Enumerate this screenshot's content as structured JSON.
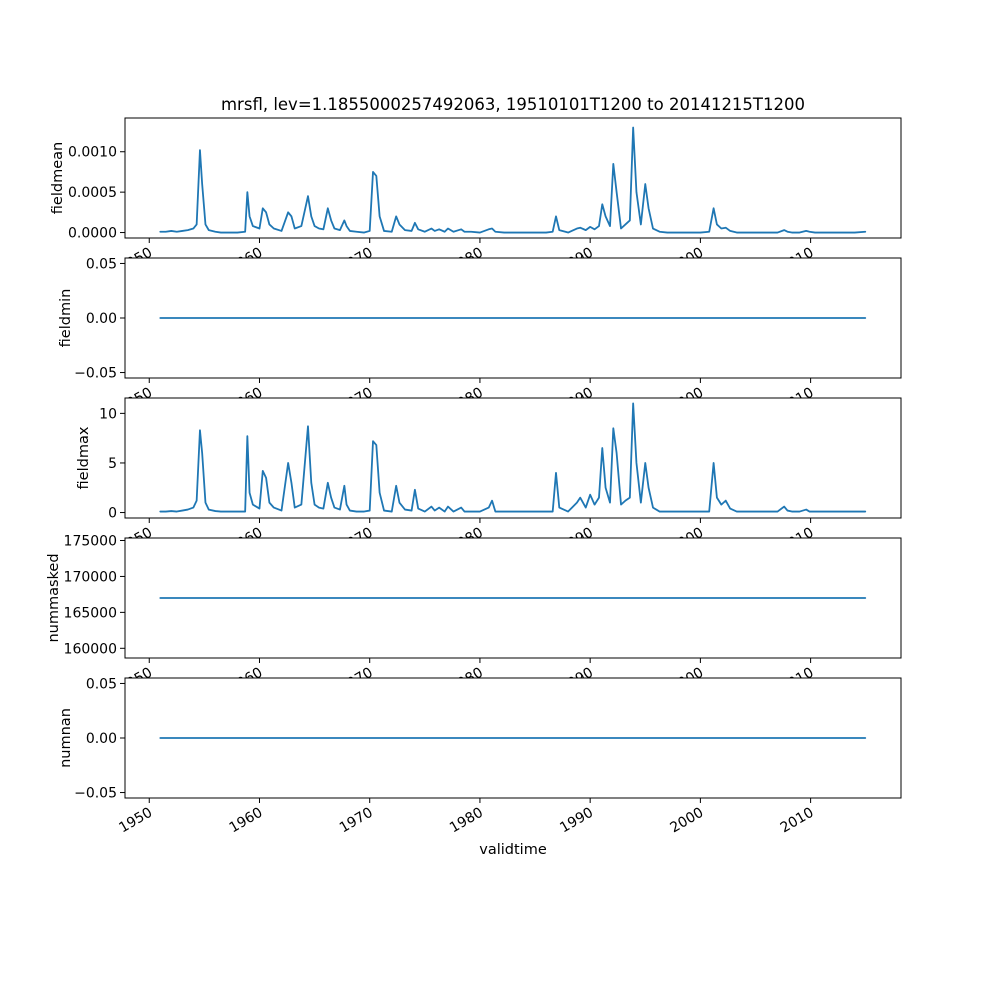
{
  "chart_data": {
    "type": "line",
    "title": "mrsfl, lev=1.1855000257492063, 19510101T1200 to 20141215T1200",
    "xlabel": "validtime",
    "line_color": "#1f77b4",
    "background_color": "#ffffff",
    "xlim": [
      1947.8,
      2018.2
    ],
    "xticks": {
      "values": [
        1950,
        1960,
        1970,
        1980,
        1990,
        2000,
        2010
      ],
      "labels": [
        "1950",
        "1960",
        "1970",
        "1980",
        "1990",
        "2000",
        "2010"
      ]
    },
    "shared_x": [
      1951.0,
      1951.5,
      1952,
      1952.5,
      1953,
      1953.5,
      1954,
      1954.3,
      1954.6,
      1954.8,
      1955.1,
      1955.4,
      1956,
      1956.5,
      1957,
      1958,
      1958.7,
      1958.9,
      1959.1,
      1959.4,
      1960,
      1960.3,
      1960.6,
      1960.9,
      1961.3,
      1962,
      1962.6,
      1962.9,
      1963.2,
      1963.8,
      1964.4,
      1964.7,
      1965.0,
      1965.4,
      1965.8,
      1966.2,
      1966.5,
      1966.8,
      1967.3,
      1967.7,
      1967.9,
      1968.2,
      1968.8,
      1969.5,
      1970.0,
      1970.3,
      1970.6,
      1970.9,
      1971.3,
      1972.0,
      1972.4,
      1972.7,
      1973.2,
      1973.8,
      1974.1,
      1974.4,
      1975.0,
      1975.6,
      1975.9,
      1976.3,
      1976.8,
      1977.1,
      1977.6,
      1978.3,
      1978.6,
      1979.2,
      1980.0,
      1980.8,
      1981.1,
      1981.4,
      1982.2,
      1983,
      1984,
      1985,
      1986,
      1986.6,
      1986.9,
      1987.2,
      1988,
      1988.8,
      1989.1,
      1989.6,
      1990.0,
      1990.4,
      1990.8,
      1991.1,
      1991.4,
      1991.8,
      1992.1,
      1992.4,
      1992.8,
      1993.2,
      1993.6,
      1993.9,
      1994.2,
      1994.6,
      1995.0,
      1995.3,
      1995.7,
      1996.3,
      1997,
      1998,
      1999,
      2000,
      2000.8,
      2001.2,
      2001.5,
      2001.9,
      2002.3,
      2002.7,
      2003.3,
      2004,
      2005,
      2006,
      2007,
      2007.6,
      2007.9,
      2008.3,
      2009,
      2009.6,
      2009.9,
      2010.4,
      2011,
      2012,
      2013,
      2014,
      2014.96
    ],
    "subplots": [
      {
        "name": "fieldmean",
        "ylabel": "fieldmean",
        "ylim": [
          -6.75e-05,
          0.0014175
        ],
        "yticks": {
          "values": [
            0.0,
            0.0005,
            0.001
          ],
          "labels": [
            "0.0000",
            "0.0005",
            "0.0010"
          ]
        },
        "x": "shared",
        "y": [
          1e-05,
          1e-05,
          2e-05,
          1e-05,
          2e-05,
          3e-05,
          5e-05,
          0.0001,
          0.00102,
          0.0006,
          0.0001,
          3e-05,
          1e-05,
          0,
          0,
          0,
          1e-05,
          0.0005,
          0.0002,
          8e-05,
          5e-05,
          0.0003,
          0.00025,
          0.0001,
          5e-05,
          2e-05,
          0.00025,
          0.0002,
          5e-05,
          8e-05,
          0.00045,
          0.0002,
          8e-05,
          5e-05,
          4e-05,
          0.0003,
          0.00015,
          5e-05,
          3e-05,
          0.00015,
          8e-05,
          2e-05,
          1e-05,
          0,
          2e-05,
          0.00075,
          0.0007,
          0.0002,
          2e-05,
          1e-05,
          0.0002,
          0.0001,
          3e-05,
          2e-05,
          0.00012,
          4e-05,
          1e-05,
          5e-05,
          2e-05,
          4e-05,
          1e-05,
          5e-05,
          1e-05,
          4e-05,
          1e-05,
          1e-05,
          0,
          4e-05,
          5e-05,
          1e-05,
          0,
          0,
          0,
          0,
          0,
          1e-05,
          0.0002,
          3e-05,
          0,
          5e-05,
          6e-05,
          3e-05,
          7e-05,
          4e-05,
          8e-05,
          0.00035,
          0.0002,
          8e-05,
          0.00085,
          0.0005,
          5e-05,
          0.0001,
          0.00015,
          0.0013,
          0.0005,
          0.0001,
          0.0006,
          0.0003,
          5e-05,
          1e-05,
          0,
          0,
          0,
          0,
          1e-05,
          0.0003,
          0.0001,
          5e-05,
          6e-05,
          2e-05,
          0,
          0,
          0,
          0,
          0,
          3e-05,
          1e-05,
          0,
          0,
          2e-05,
          1e-05,
          0,
          0,
          0,
          0,
          0,
          1e-05
        ]
      },
      {
        "name": "fieldmin",
        "ylabel": "fieldmin",
        "ylim": [
          -0.055,
          0.055
        ],
        "yticks": {
          "values": [
            -0.05,
            0.0,
            0.05
          ],
          "labels": [
            "−0.05",
            "0.00",
            "0.05"
          ]
        },
        "x": [
          1951.0,
          2014.96
        ],
        "y": [
          0,
          0
        ]
      },
      {
        "name": "fieldmax",
        "ylabel": "fieldmax",
        "ylim": [
          -0.55,
          11.55
        ],
        "yticks": {
          "values": [
            0,
            5,
            10
          ],
          "labels": [
            "0",
            "5",
            "10"
          ]
        },
        "x": "shared",
        "y": [
          0.1,
          0.1,
          0.15,
          0.1,
          0.2,
          0.3,
          0.5,
          1.2,
          8.3,
          6.0,
          1.0,
          0.3,
          0.15,
          0.1,
          0.1,
          0.1,
          0.1,
          7.7,
          2.0,
          0.8,
          0.4,
          4.2,
          3.5,
          1.0,
          0.5,
          0.2,
          5.0,
          3.0,
          0.5,
          0.8,
          8.7,
          3.0,
          0.8,
          0.5,
          0.4,
          3.0,
          1.5,
          0.5,
          0.3,
          2.7,
          0.8,
          0.2,
          0.1,
          0.1,
          0.2,
          7.2,
          6.8,
          2.0,
          0.2,
          0.1,
          2.7,
          1.0,
          0.3,
          0.2,
          2.3,
          0.4,
          0.1,
          0.6,
          0.2,
          0.5,
          0.1,
          0.6,
          0.1,
          0.5,
          0.1,
          0.1,
          0.1,
          0.5,
          1.2,
          0.1,
          0.1,
          0.1,
          0.1,
          0.1,
          0.1,
          0.1,
          4.0,
          0.5,
          0.1,
          1.0,
          1.5,
          0.5,
          1.8,
          0.8,
          1.5,
          6.5,
          2.5,
          1.0,
          8.5,
          6.0,
          0.8,
          1.2,
          1.5,
          11.0,
          5.0,
          1.0,
          5.0,
          2.5,
          0.5,
          0.1,
          0.1,
          0.1,
          0.1,
          0.1,
          0.1,
          5.0,
          1.5,
          0.8,
          1.2,
          0.4,
          0.1,
          0.1,
          0.1,
          0.1,
          0.1,
          0.6,
          0.2,
          0.1,
          0.1,
          0.3,
          0.1,
          0.1,
          0.1,
          0.1,
          0.1,
          0.1,
          0.1
        ]
      },
      {
        "name": "nummasked",
        "ylabel": "nummasked",
        "ylim": [
          158650,
          175350
        ],
        "yticks": {
          "values": [
            160000,
            165000,
            170000,
            175000
          ],
          "labels": [
            "160000",
            "165000",
            "170000",
            "175000"
          ]
        },
        "x": [
          1951.0,
          2014.96
        ],
        "y": [
          167000,
          167000
        ]
      },
      {
        "name": "numnan",
        "ylabel": "numnan",
        "ylim": [
          -0.055,
          0.055
        ],
        "yticks": {
          "values": [
            -0.05,
            0.0,
            0.05
          ],
          "labels": [
            "−0.05",
            "0.00",
            "0.05"
          ]
        },
        "x": [
          1951.0,
          2014.96
        ],
        "y": [
          0,
          0
        ]
      }
    ]
  }
}
